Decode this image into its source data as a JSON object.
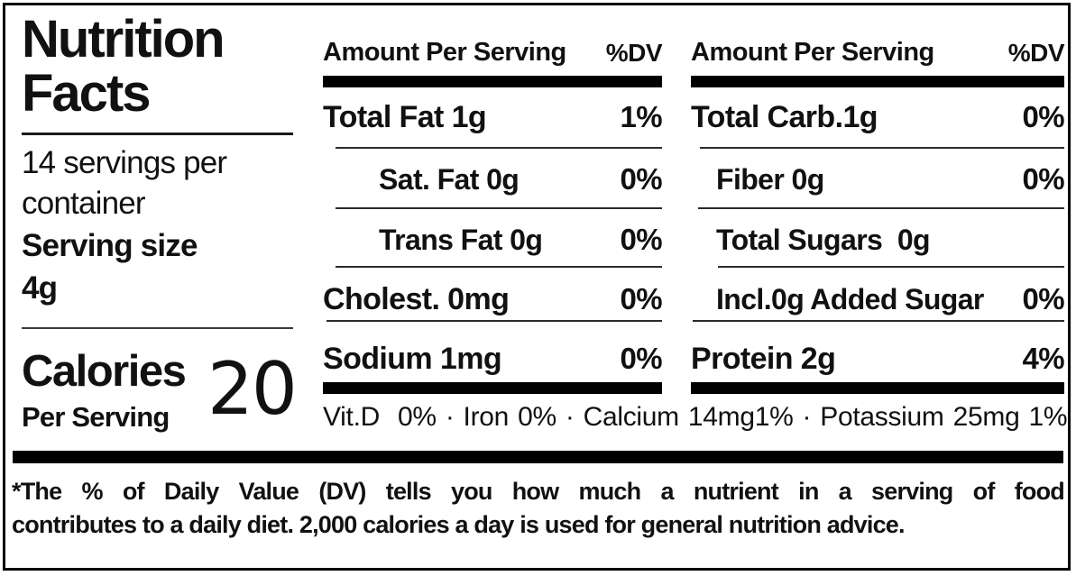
{
  "label": {
    "title_line1": "Nutrition",
    "title_line2": "Facts",
    "servings_line1": "14 servings per",
    "servings_line2": "container",
    "serving_size_label": "Serving size",
    "serving_size_value": "4g",
    "calories_label": "Calories",
    "calories_sublabel": "Per Serving",
    "calories_value": "20"
  },
  "columns": [
    {
      "amount_header": "Amount Per Serving",
      "dv_header": "%DV",
      "rows": [
        {
          "name": "Total Fat 1g",
          "dv": "1%"
        },
        {
          "name": "Sat. Fat 0g",
          "dv": "0%"
        },
        {
          "name": "Trans Fat 0g",
          "dv": "0%"
        },
        {
          "name": "Cholest. 0mg",
          "dv": "0%"
        },
        {
          "name": "Sodium 1mg",
          "dv": "0%"
        }
      ]
    },
    {
      "amount_header": "Amount Per Serving",
      "dv_header": "%DV",
      "rows": [
        {
          "name": "Total Carb.1g",
          "dv": "0%"
        },
        {
          "name": "Fiber 0g",
          "dv": "0%"
        },
        {
          "name": "Total Sugars  0g",
          "dv": ""
        },
        {
          "name": "Incl.0g Added Sugar",
          "dv": "0%"
        },
        {
          "name": "Protein 2g",
          "dv": "4%"
        }
      ]
    }
  ],
  "micronutrients_line": "Vit.D  0% · Iron 0% · Calcium 14mg1% · Potassium 25mg 1%",
  "footnote": {
    "line1": "*The % of Daily Value (DV) tells you how much a nutrient in a serving of food",
    "line2": "contributes to a daily diet. 2,000 calories a day is used for general nutrition advice."
  },
  "colors": {
    "text": "#111111",
    "bar": "#000000",
    "background": "#ffffff"
  }
}
